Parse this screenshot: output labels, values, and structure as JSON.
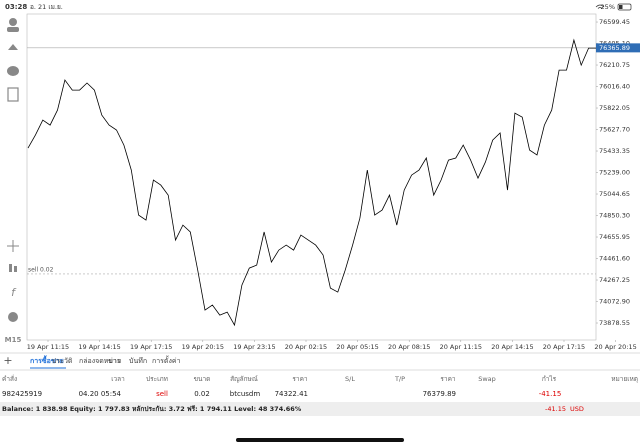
{
  "status_bar": {
    "time": "03:28",
    "date": "อ. 21 เม.ย.",
    "battery": "25%"
  },
  "chart": {
    "type": "line",
    "color": "#000000",
    "timeframe": "M15",
    "values": [
      75460,
      75577,
      75713,
      75668,
      75803,
      76075,
      75984,
      75984,
      76048,
      75984,
      75758,
      75668,
      75623,
      75487,
      75261,
      74854,
      74809,
      75171,
      75125,
      75035,
      74628,
      74764,
      74701,
      74357,
      73995,
      74041,
      73950,
      73977,
      73860,
      74221,
      74375,
      74402,
      74701,
      74429,
      74538,
      74583,
      74538,
      74673,
      74628,
      74583,
      74493,
      74194,
      74158,
      74357,
      74583,
      74827,
      75261,
      74854,
      74899,
      75035,
      74764,
      75080,
      75216,
      75261,
      75370,
      75035,
      75171,
      75351,
      75370,
      75487,
      75351,
      75189,
      75333,
      75532,
      75596,
      75080,
      75776,
      75740,
      75442,
      75397,
      75668,
      75803,
      76165,
      76165,
      76436,
      76210,
      76364,
      76364
    ],
    "ylim": [
      73725,
      76672
    ],
    "yticks": [
      76599.45,
      {
        "value": 76405.1,
        "label": "76405.10"
      },
      76210.75,
      {
        "value": 76016.4,
        "label": "76016.40"
      },
      75822.05,
      {
        "value": 75627.7,
        "label": "75627.70"
      },
      75433.35,
      {
        "value": 75239,
        "label": "75239.00"
      },
      75044.65,
      {
        "value": 74850.3,
        "label": "74850.30"
      },
      74655.95,
      {
        "value": 74461.6,
        "label": "74461.60"
      },
      74267.25,
      {
        "value": 74072.9,
        "label": "74072.90"
      },
      73878.55
    ],
    "xtick_labels": [
      "19 Apr 11:15",
      "19 Apr 14:15",
      "19 Apr 17:15",
      "19 Apr 20:15",
      "19 Apr 23:15",
      "20 Apr 02:15",
      "20 Apr 05:15",
      "20 Apr 08:15",
      "20 Apr 11:15",
      "20 Apr 14:15",
      "20 Apr 17:15",
      "20 Apr 20:15"
    ],
    "current_price": {
      "value": 76365.89,
      "label": "76365.89"
    },
    "order_line": {
      "label": "sell 0.02",
      "value": 74322.41
    }
  },
  "tabs": [
    "การซื้อขาย",
    "ประวัติ",
    "กล่องจดหมาย",
    "ข่าว",
    "บันทึก",
    "การตั้งค่า"
  ],
  "table": {
    "columns": [
      "คำสั่ง",
      "เวลา",
      "ประเภท",
      "ขนาด",
      "สัญลักษณ์",
      "ราคา",
      "S/L",
      "T/P",
      "ราคา",
      "Swap",
      "กำไร",
      "หมายเหตุ"
    ],
    "row": {
      "order": "982425919",
      "time": "04.20 05:54",
      "type": "sell",
      "volume": "0.02",
      "symbol": "btcusdm",
      "open_price": "74322.41",
      "price": "76379.89",
      "profit": "-41.15"
    }
  },
  "summary": {
    "text": "Balance: 1 838.98 Equity: 1 797.83 หลักประกัน: 3.72 ฟรี: 1 794.11 Level: 48 374.66%",
    "profit": "-41.15",
    "currency": "USD"
  }
}
